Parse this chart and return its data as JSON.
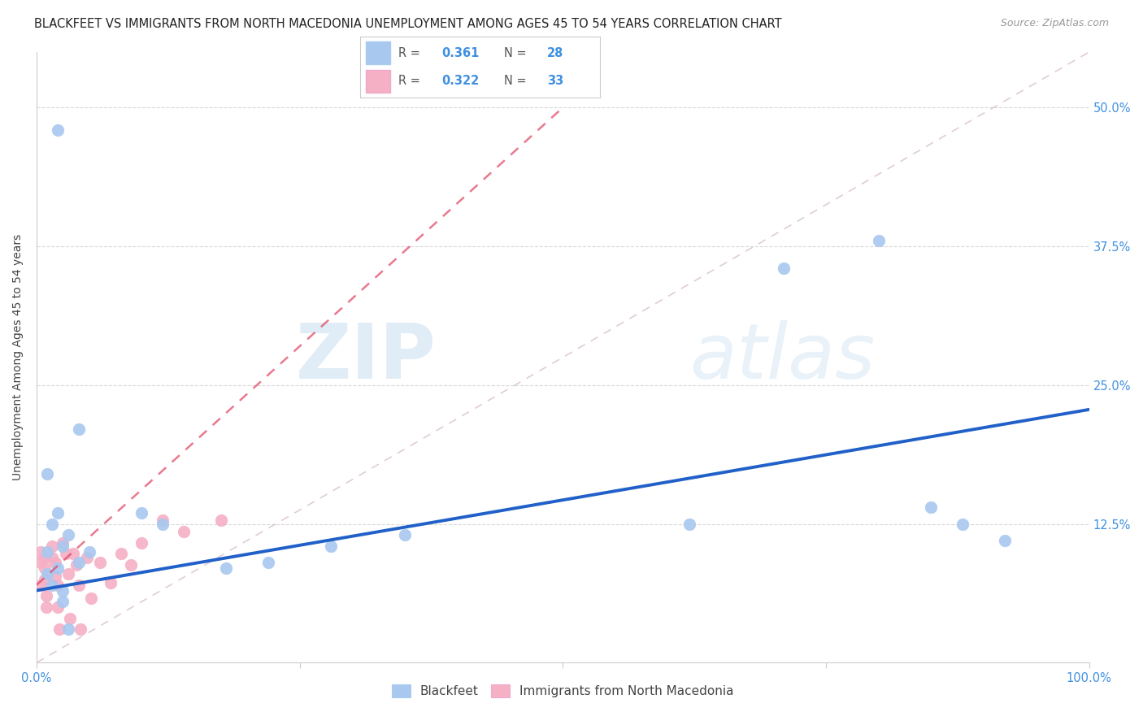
{
  "title": "BLACKFEET VS IMMIGRANTS FROM NORTH MACEDONIA UNEMPLOYMENT AMONG AGES 45 TO 54 YEARS CORRELATION CHART",
  "source": "Source: ZipAtlas.com",
  "ylabel": "Unemployment Among Ages 45 to 54 years",
  "watermark_zip": "ZIP",
  "watermark_atlas": "atlas",
  "blackfeet_R": 0.361,
  "blackfeet_N": 28,
  "macedonia_R": 0.322,
  "macedonia_N": 33,
  "xlim": [
    0.0,
    1.0
  ],
  "ylim": [
    0.0,
    0.55
  ],
  "xticks": [
    0.0,
    0.25,
    0.5,
    0.75,
    1.0
  ],
  "xticklabels": [
    "0.0%",
    "",
    "",
    "",
    "100.0%"
  ],
  "yticks": [
    0.0,
    0.125,
    0.25,
    0.375,
    0.5
  ],
  "yticklabels_right": [
    "",
    "12.5%",
    "25.0%",
    "37.5%",
    "50.0%"
  ],
  "blackfeet_color": "#a8c8f0",
  "blackfeet_edge_color": "#6aacee",
  "blackfeet_line_color": "#2060c8",
  "macedonia_color": "#f5b0c5",
  "macedonia_edge_color": "#e888aa",
  "macedonia_line_color": "#e04060",
  "diag_line_color": "#d8c0d0",
  "blackfeet_x": [
    0.02,
    0.04,
    0.01,
    0.015,
    0.02,
    0.01,
    0.025,
    0.03,
    0.04,
    0.05,
    0.01,
    0.015,
    0.025,
    0.1,
    0.12,
    0.22,
    0.28,
    0.35,
    0.62,
    0.71,
    0.8,
    0.85,
    0.88,
    0.92,
    0.02,
    0.025,
    0.03,
    0.18
  ],
  "blackfeet_y": [
    0.48,
    0.21,
    0.17,
    0.125,
    0.135,
    0.1,
    0.105,
    0.115,
    0.09,
    0.1,
    0.08,
    0.07,
    0.055,
    0.135,
    0.125,
    0.09,
    0.105,
    0.115,
    0.125,
    0.355,
    0.38,
    0.14,
    0.125,
    0.11,
    0.085,
    0.065,
    0.03,
    0.085
  ],
  "macedonia_x": [
    0.004,
    0.004,
    0.004,
    0.008,
    0.008,
    0.008,
    0.009,
    0.009,
    0.015,
    0.015,
    0.018,
    0.018,
    0.02,
    0.02,
    0.022,
    0.025,
    0.028,
    0.03,
    0.032,
    0.035,
    0.038,
    0.04,
    0.042,
    0.048,
    0.052,
    0.06,
    0.07,
    0.08,
    0.09,
    0.1,
    0.12,
    0.14,
    0.175
  ],
  "macedonia_y": [
    0.1,
    0.09,
    0.07,
    0.095,
    0.085,
    0.075,
    0.06,
    0.05,
    0.105,
    0.095,
    0.09,
    0.078,
    0.07,
    0.05,
    0.03,
    0.108,
    0.098,
    0.08,
    0.04,
    0.098,
    0.088,
    0.07,
    0.03,
    0.095,
    0.058,
    0.09,
    0.072,
    0.098,
    0.088,
    0.108,
    0.128,
    0.118,
    0.128
  ],
  "blackfeet_line_y0": 0.065,
  "blackfeet_line_y1": 0.228,
  "macedonia_line_y0": 0.07,
  "macedonia_line_y1": 0.5,
  "macedonia_line_x1": 0.5,
  "marker_size": 110,
  "title_fontsize": 10.5,
  "axis_label_fontsize": 10,
  "tick_fontsize": 10.5,
  "legend_fontsize": 11,
  "source_fontsize": 9,
  "tick_color": "#4090e0"
}
